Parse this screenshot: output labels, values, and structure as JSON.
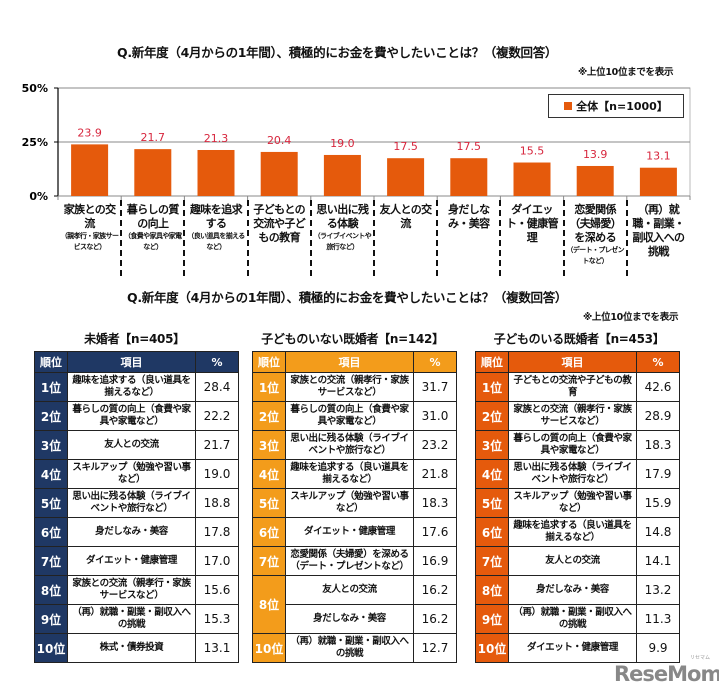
{
  "chart_data": {
    "type": "bar",
    "title": "Q.新年度（4月からの1年間）、積極的にお金を費やしたいことは？（複数回答）",
    "note": "※上位10位までを表示",
    "legend": {
      "label": "全体【n=1000】",
      "position": "top-right",
      "color": "#E55A0C"
    },
    "ylim": [
      0,
      50
    ],
    "yticks": [
      "0%",
      "25%",
      "50%"
    ],
    "ytick_values": [
      0,
      25,
      50
    ],
    "grid": true,
    "categories": [
      {
        "main": "家族との交流",
        "sub": "（親孝行・家族サービスなど）"
      },
      {
        "main": "暮らしの質の向上",
        "sub": "（食費や家具や家電など）"
      },
      {
        "main": "趣味を追求する",
        "sub": "（良い道具を揃えるなど）"
      },
      {
        "main": "子どもとの交流や子どもの教育",
        "sub": ""
      },
      {
        "main": "思い出に残る体験",
        "sub": "（ライブイベントや旅行など）"
      },
      {
        "main": "友人との交流",
        "sub": ""
      },
      {
        "main": "身だしなみ・美容",
        "sub": ""
      },
      {
        "main": "ダイエット・健康管理",
        "sub": ""
      },
      {
        "main": "恋愛関係（夫婦愛）を深める",
        "sub": "（デート・プレゼントなど）"
      },
      {
        "main": "（再）就職・副業・副収入への挑戦",
        "sub": ""
      }
    ],
    "values": [
      23.9,
      21.7,
      21.3,
      20.4,
      19.0,
      17.5,
      17.5,
      15.5,
      13.9,
      13.1
    ],
    "value_labels": [
      "23.9",
      "21.7",
      "21.3",
      "20.4",
      "19.0",
      "17.5",
      "17.5",
      "15.5",
      "13.9",
      "13.1"
    ],
    "bar_color": "#E55A0C",
    "label_color": "#D7263D"
  },
  "tables_section": {
    "title": "Q.新年度（4月からの1年間）、積極的にお金を費やしたいことは？（複数回答）",
    "note": "※上位10位までを表示",
    "headers": {
      "rank": "順位",
      "item": "項目",
      "pct": "%"
    },
    "tables": [
      {
        "title": "未婚者【n=405】",
        "color": "#1F3864",
        "rows": [
          {
            "rank": "1位",
            "item": "趣味を追求する（良い道具を揃えるなど）",
            "pct": "28.4"
          },
          {
            "rank": "2位",
            "item": "暮らしの質の向上（食費や家具や家電など）",
            "pct": "22.2"
          },
          {
            "rank": "3位",
            "item": "友人との交流",
            "pct": "21.7"
          },
          {
            "rank": "4位",
            "item": "スキルアップ（勉強や習い事など）",
            "pct": "19.0"
          },
          {
            "rank": "5位",
            "item": "思い出に残る体験（ライブイベントや旅行など）",
            "pct": "18.8"
          },
          {
            "rank": "6位",
            "item": "身だしなみ・美容",
            "pct": "17.8"
          },
          {
            "rank": "7位",
            "item": "ダイエット・健康管理",
            "pct": "17.0"
          },
          {
            "rank": "8位",
            "item": "家族との交流（親孝行・家族サービスなど）",
            "pct": "15.6"
          },
          {
            "rank": "9位",
            "item": "（再）就職・副業・副収入への挑戦",
            "pct": "15.3"
          },
          {
            "rank": "10位",
            "item": "株式・債券投資",
            "pct": "13.1"
          }
        ]
      },
      {
        "title": "子どものいない既婚者【n=142】",
        "color": "#F39C1B",
        "rows": [
          {
            "rank": "1位",
            "item": "家族との交流（親孝行・家族サービスなど）",
            "pct": "31.7"
          },
          {
            "rank": "2位",
            "item": "暮らしの質の向上（食費や家具や家電など）",
            "pct": "31.0"
          },
          {
            "rank": "3位",
            "item": "思い出に残る体験（ライブイベントや旅行など）",
            "pct": "23.2"
          },
          {
            "rank": "4位",
            "item": "趣味を追求する（良い道具を揃えるなど）",
            "pct": "21.8"
          },
          {
            "rank": "5位",
            "item": "スキルアップ（勉強や習い事など）",
            "pct": "18.3"
          },
          {
            "rank": "6位",
            "item": "ダイエット・健康管理",
            "pct": "17.6"
          },
          {
            "rank": "7位",
            "item": "恋愛関係（夫婦愛）を深める（デート・プレゼントなど）",
            "pct": "16.9"
          },
          {
            "rank": "8位",
            "item": "友人との交流",
            "pct": "16.2"
          },
          {
            "rank": "8位",
            "item": "身だしなみ・美容",
            "pct": "16.2"
          },
          {
            "rank": "10位",
            "item": "（再）就職・副業・副収入への挑戦",
            "pct": "12.7"
          }
        ]
      },
      {
        "title": "子どものいる既婚者【n=453】",
        "color": "#E55A0C",
        "rows": [
          {
            "rank": "1位",
            "item": "子どもとの交流や子どもの教育",
            "pct": "42.6"
          },
          {
            "rank": "2位",
            "item": "家族との交流（親孝行・家族サービスなど）",
            "pct": "28.9"
          },
          {
            "rank": "3位",
            "item": "暮らしの質の向上（食費や家具や家電など）",
            "pct": "18.3"
          },
          {
            "rank": "4位",
            "item": "思い出に残る体験（ライブイベントや旅行など）",
            "pct": "17.9"
          },
          {
            "rank": "5位",
            "item": "スキルアップ（勉強や習い事など）",
            "pct": "15.9"
          },
          {
            "rank": "6位",
            "item": "趣味を追求する（良い道具を揃えるなど）",
            "pct": "14.8"
          },
          {
            "rank": "7位",
            "item": "友人との交流",
            "pct": "14.1"
          },
          {
            "rank": "8位",
            "item": "身だしなみ・美容",
            "pct": "13.2"
          },
          {
            "rank": "9位",
            "item": "（再）就職・副業・副収入への挑戦",
            "pct": "11.3"
          },
          {
            "rank": "10位",
            "item": "ダイエット・健康管理",
            "pct": "9.9"
          }
        ]
      }
    ]
  },
  "watermark": {
    "logo": "ReseMom",
    "small": "リセマム"
  }
}
